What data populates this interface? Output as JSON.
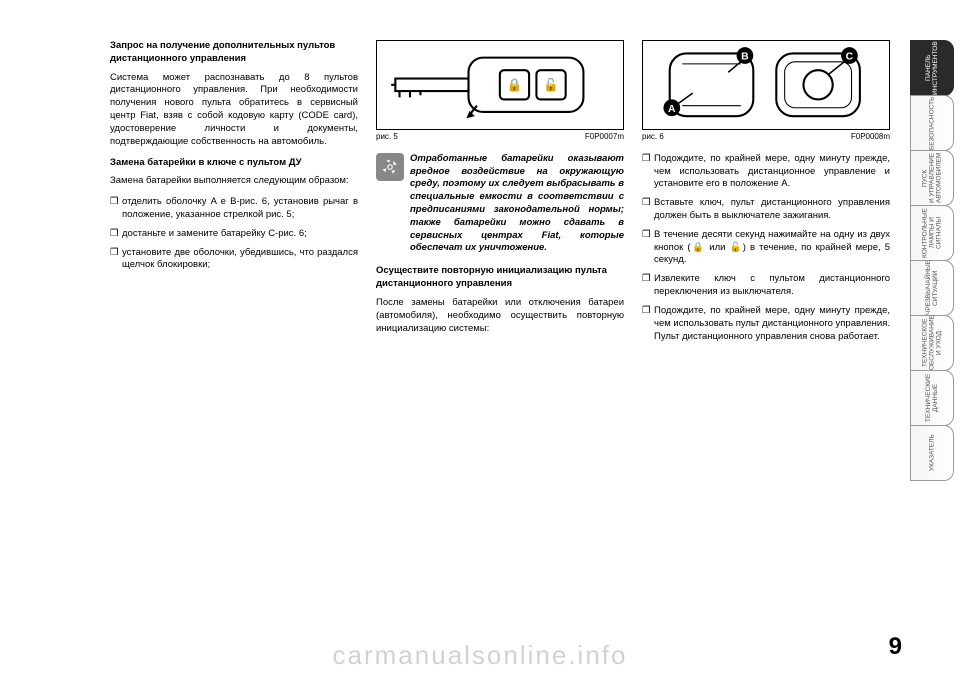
{
  "page_number": "9",
  "watermark": "carmanualsonline.info",
  "tabs": [
    {
      "label": "ПАНЕЛЬ\nИНСТРУМЕНТОВ",
      "active": true
    },
    {
      "label": "БЕЗОПАСНОСТЬ",
      "active": false
    },
    {
      "label": "ПУСК\nИ УПРАВЛЕНИЕ\nАВТОМОБИЛЕМ",
      "active": false
    },
    {
      "label": "КОНТРОЛЬНЫЕ\nЛАМПЫ И\nСИГНАЛЫ",
      "active": false
    },
    {
      "label": "ЧРЕЗВЫЧАЙНЫЕ\nСИТУАЦИИ",
      "active": false
    },
    {
      "label": "ТЕХНИЧЕСКОЕ\nОБСЛУЖИВАНИЕ\nИ УХОД",
      "active": false
    },
    {
      "label": "ТЕХНИЧЕСКИЕ\nДАННЫЕ",
      "active": false
    },
    {
      "label": "УКАЗАТЕЛЬ",
      "active": false
    }
  ],
  "col1": {
    "h1": "Запрос на получение дополнительных пультов дистанционного управления",
    "p1": "Система может распознавать до 8 пультов дистанционного управления. При необходимости получения нового пульта обратитесь в сервисный центр Fiat, взяв с собой кодовую карту (CODE card), удостоверение личности и документы, подтверждающие собственность на автомобиль.",
    "h2": "Замена батарейки в ключе с пультом ДУ",
    "p2": "Замена батарейки выполняется следующим образом:",
    "li1": "отделить оболочку A е B-рис. 6, установив рычаг в положение, указанное стрелкой рис. 5;",
    "li2": "достаньте и замените батарейку C-рис. 6;",
    "li3": "установите две оболочки, убедившись, что раздался щелчок блокировки;"
  },
  "col2": {
    "fig_caption_left": "рис. 5",
    "fig_caption_right": "F0P0007m",
    "warn": "Отработанные батарейки оказывают вредное воздействие на окружающую среду, поэтому их следует выбрасывать в специальные емкости в соответствии с предписаниями законодательной нормы; также батарейки можно сдавать в сервисных центрах Fiat, которые обеспечат их уничтожение.",
    "h3": "Осуществите повторную инициализацию пульта дистанционного управления",
    "p3": "После замены батарейки или отключения батареи (автомобиля), необходимо осуществить повторную инициализацию системы:"
  },
  "col3": {
    "fig_caption_left": "рис. 6",
    "fig_caption_right": "F0P0008m",
    "li1": "Подождите, по крайней мере, одну минуту прежде, чем использовать дистанционное управление и установите его в положение A.",
    "li2": "Вставьте ключ, пульт дистанционного управления должен быть в выключателе зажигания.",
    "li3_a": "В течение десяти секунд нажимайте на одну из двух кнопок (",
    "li3_b": " или ",
    "li3_c": ") в течение, по крайней мере, 5 секунд.",
    "li4": "Извлеките ключ с пультом дистанционного переключения из выключателя.",
    "li5": "Подождите, по крайней мере, одну минуту прежде, чем использовать пульт дистанционного управления. Пульт дистанционного управления снова работает."
  },
  "icons": {
    "lock": "🔒",
    "unlock": "🔓"
  },
  "colors": {
    "tab_active_bg": "#2a2a2a",
    "tab_inactive_border": "#999999",
    "text": "#000000",
    "watermark": "rgba(0,0,0,0.18)"
  }
}
